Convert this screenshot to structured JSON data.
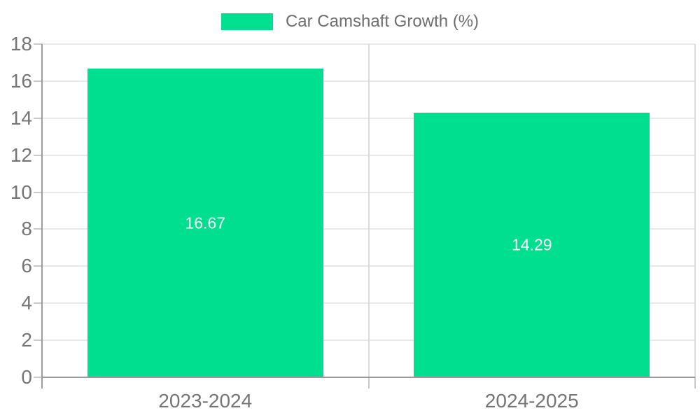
{
  "legend": {
    "label": "Car Camshaft Growth (%)"
  },
  "chart_data": {
    "type": "bar",
    "title": "",
    "categories": [
      "2023-2024",
      "2024-2025"
    ],
    "values": [
      16.67,
      14.29
    ],
    "value_labels": [
      "16.67",
      "14.29"
    ],
    "series_name": "Car Camshaft Growth (%)",
    "xlabel": "",
    "ylabel": "",
    "ylim": [
      0,
      18
    ],
    "yticks": [
      0,
      2,
      4,
      6,
      8,
      10,
      12,
      14,
      16,
      18
    ],
    "grid": true,
    "legend_position": "top-center",
    "value_label_position": "inside-center",
    "colors": {
      "bar": "#00de8f",
      "value_label": "#ffffff",
      "axis": "#9b9b9b",
      "grid_h": "#e8e8e8",
      "grid_v": "#dcdcdc",
      "tick": "#c9c9c9",
      "tick_label": "#757575",
      "legend_text": "#6e6e6e",
      "background": "#ffffff"
    }
  }
}
